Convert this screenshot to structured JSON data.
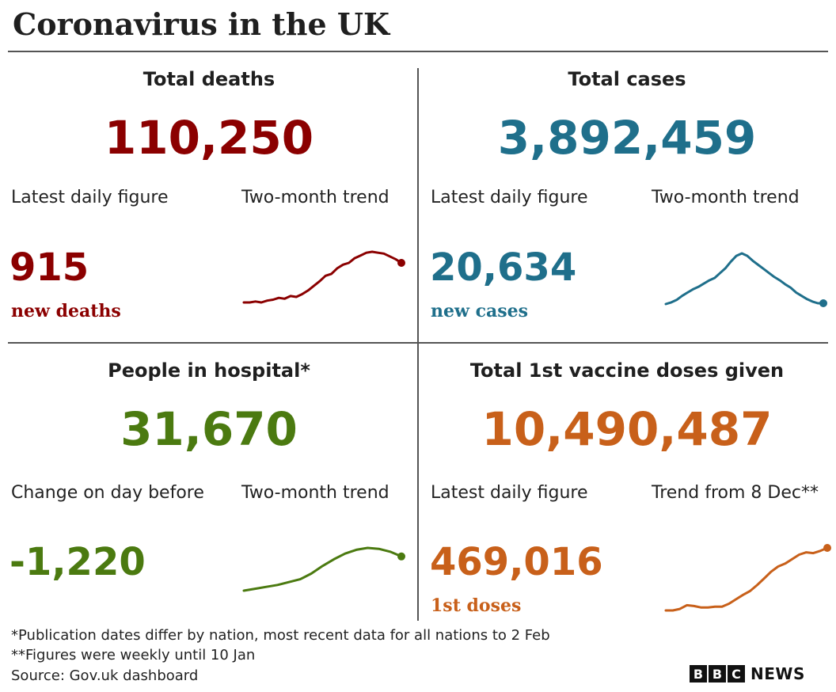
{
  "title": "Coronavirus in the UK",
  "colors": {
    "deaths": "#8b0000",
    "cases": "#1f6f8b",
    "hospital": "#4b7a10",
    "vaccine": "#c8601a",
    "divider": "#555555"
  },
  "panels": {
    "deaths": {
      "heading": "Total deaths",
      "total": "110,250",
      "left_label": "Latest daily figure",
      "right_label": "Two-month trend",
      "daily_value": "915",
      "daily_unit": "new deaths"
    },
    "cases": {
      "heading": "Total cases",
      "total": "3,892,459",
      "left_label": "Latest daily figure",
      "right_label": "Two-month trend",
      "daily_value": "20,634",
      "daily_unit": "new cases"
    },
    "hospital": {
      "heading": "People in hospital*",
      "total": "31,670",
      "left_label": "Change on day before",
      "right_label": "Two-month trend",
      "daily_value": "-1,220"
    },
    "vaccine": {
      "heading": "Total 1st vaccine doses given",
      "total": "10,490,487",
      "left_label": "Latest daily figure",
      "right_label": "Trend from 8 Dec**",
      "daily_value": "469,016",
      "daily_unit": "1st doses"
    }
  },
  "chart_data": [
    {
      "type": "line",
      "series": "deaths_trend",
      "y": [
        5,
        5,
        6,
        5,
        7,
        8,
        10,
        9,
        12,
        11,
        14,
        18,
        23,
        28,
        34,
        36,
        42,
        46,
        48,
        53,
        56,
        59,
        60,
        59,
        58,
        55,
        52,
        48
      ]
    },
    {
      "type": "line",
      "series": "cases_trend",
      "y": [
        4,
        6,
        9,
        14,
        18,
        22,
        25,
        29,
        33,
        36,
        42,
        48,
        56,
        63,
        66,
        63,
        57,
        52,
        47,
        42,
        37,
        33,
        28,
        24,
        18,
        14,
        10,
        7,
        5,
        5
      ]
    },
    {
      "type": "line",
      "series": "hospital_trend",
      "y": [
        0,
        2,
        4,
        6,
        9,
        12,
        18,
        26,
        33,
        39,
        43,
        45,
        44,
        41,
        36
      ]
    },
    {
      "type": "line",
      "series": "vaccine_trend",
      "y": [
        0,
        0,
        2,
        7,
        6,
        4,
        4,
        5,
        5,
        9,
        15,
        21,
        26,
        34,
        43,
        52,
        59,
        63,
        69,
        75,
        78,
        77,
        80,
        84
      ]
    }
  ],
  "footnotes": [
    "*Publication dates differ by nation, most recent data for all nations to 2 Feb",
    "**Figures were weekly until 10 Jan",
    "Source: Gov.uk dashboard"
  ],
  "logo": {
    "letters": [
      "B",
      "B",
      "C"
    ],
    "word": "NEWS"
  }
}
